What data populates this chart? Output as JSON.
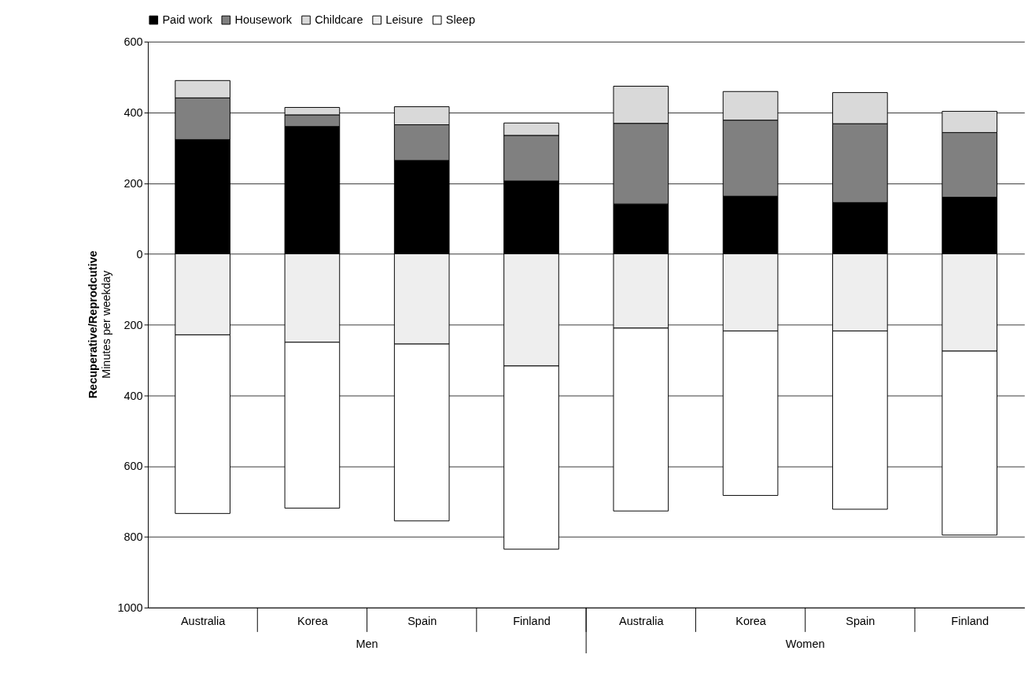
{
  "chart_data": {
    "type": "bar",
    "stacked": true,
    "ylabel": "Recuperative/Reprodcutive\nMinutes per weekday",
    "categories": [
      "Australia",
      "Korea",
      "Spain",
      "Finland",
      "Australia",
      "Korea",
      "Spain",
      "Finland"
    ],
    "annotations": [
      "Men",
      "Women"
    ],
    "series": [
      {
        "name": "Paid work",
        "color": "#000000",
        "values": [
          323,
          360,
          264,
          206,
          141,
          163,
          145,
          160
        ]
      },
      {
        "name": "Housework",
        "color": "#808080",
        "values": [
          118,
          33,
          101,
          129,
          228,
          215,
          223,
          183
        ]
      },
      {
        "name": "Childcare",
        "color": "#d9d9d9",
        "values": [
          49,
          21,
          51,
          35,
          105,
          81,
          88,
          60
        ]
      },
      {
        "name": "Leisure",
        "color": "#eeeeee",
        "values": [
          -229,
          -250,
          -255,
          -317,
          -210,
          -218,
          -218,
          -275
        ]
      },
      {
        "name": "Sleep",
        "color": "#ffffff",
        "values": [
          -505,
          -469,
          -500,
          -518,
          -517,
          -465,
          -504,
          -520
        ]
      }
    ],
    "ylim": [
      -1000,
      600
    ],
    "yticks": [
      600,
      400,
      200,
      0,
      {
        "value": -200,
        "label": "200"
      },
      {
        "value": -400,
        "label": "400"
      },
      {
        "value": -600,
        "label": "600"
      },
      {
        "value": -800,
        "label": "800"
      },
      {
        "value": -1000,
        "label": "1000"
      }
    ],
    "grid": "y",
    "legend": "top"
  }
}
